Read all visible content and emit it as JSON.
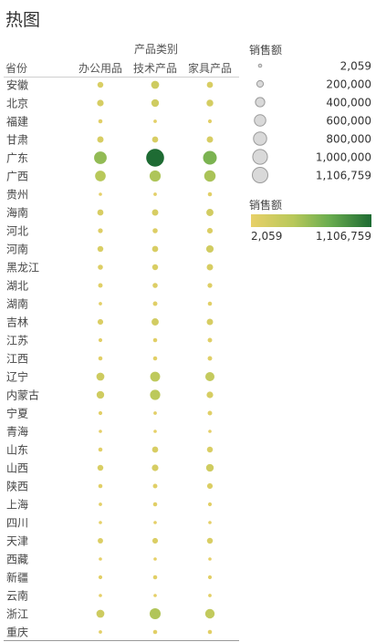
{
  "title": "热图",
  "chart_data": {
    "type": "scatter",
    "column_group_title": "产品类别",
    "row_header": "省份",
    "columns": [
      "办公用品",
      "技术产品",
      "家具产品"
    ],
    "rows": [
      "安徽",
      "北京",
      "福建",
      "甘肃",
      "广东",
      "广西",
      "贵州",
      "海南",
      "河北",
      "河南",
      "黑龙江",
      "湖北",
      "湖南",
      "吉林",
      "江苏",
      "江西",
      "辽宁",
      "内蒙古",
      "宁夏",
      "青海",
      "山东",
      "山西",
      "陕西",
      "上海",
      "四川",
      "天津",
      "西藏",
      "新疆",
      "云南",
      "浙江",
      "重庆"
    ],
    "values": [
      [
        120000,
        220000,
        130000
      ],
      [
        150000,
        200000,
        160000
      ],
      [
        60000,
        40000,
        50000
      ],
      [
        140000,
        130000,
        140000
      ],
      [
        550000,
        1106759,
        650000
      ],
      [
        390000,
        430000,
        450000
      ],
      [
        30000,
        40000,
        60000
      ],
      [
        130000,
        140000,
        180000
      ],
      [
        80000,
        90000,
        110000
      ],
      [
        120000,
        130000,
        190000
      ],
      [
        90000,
        120000,
        140000
      ],
      [
        70000,
        90000,
        80000
      ],
      [
        40000,
        70000,
        60000
      ],
      [
        110000,
        180000,
        140000
      ],
      [
        50000,
        60000,
        70000
      ],
      [
        60000,
        60000,
        70000
      ],
      [
        220000,
        340000,
        290000
      ],
      [
        200000,
        360000,
        150000
      ],
      [
        50000,
        40000,
        70000
      ],
      [
        30000,
        20000,
        30000
      ],
      [
        60000,
        130000,
        120000
      ],
      [
        120000,
        150000,
        200000
      ],
      [
        60000,
        70000,
        110000
      ],
      [
        40000,
        60000,
        50000
      ],
      [
        20000,
        30000,
        30000
      ],
      [
        100000,
        110000,
        120000
      ],
      [
        20000,
        20000,
        20000
      ],
      [
        50000,
        60000,
        50000
      ],
      [
        30000,
        30000,
        40000
      ],
      [
        220000,
        420000,
        310000
      ],
      [
        40000,
        60000,
        60000
      ]
    ],
    "size_legend": {
      "title": "销售额",
      "items": [
        "2,059",
        "200,000",
        "400,000",
        "600,000",
        "800,000",
        "1,000,000",
        "1,106,759"
      ],
      "item_values": [
        2059,
        200000,
        400000,
        600000,
        800000,
        1000000,
        1106759
      ]
    },
    "color_legend": {
      "title": "销售额",
      "min_label": "2,059",
      "max_label": "1,106,759",
      "min": 2059,
      "max": 1106759,
      "colors": [
        "#e8d068",
        "#b8c85a",
        "#6aad4f",
        "#1e6b33"
      ]
    }
  }
}
